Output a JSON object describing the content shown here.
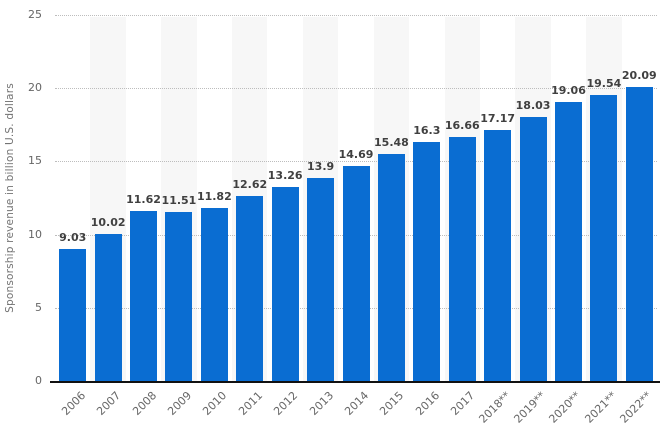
{
  "chart_data": {
    "type": "bar",
    "title": "",
    "xlabel": "",
    "ylabel": "Sponsorship revenue in billion U.S. dollars",
    "ylim": [
      0,
      25
    ],
    "yticks": [
      0,
      5,
      10,
      15,
      20,
      25
    ],
    "grid": "horizontal-dotted",
    "legend": "none",
    "background_stripes": "alternating light gray column bands",
    "categories": [
      "2006",
      "2007",
      "2008",
      "2009",
      "2010",
      "2011",
      "2012",
      "2013",
      "2014",
      "2015",
      "2016",
      "2017",
      "2018**",
      "2019**",
      "2020**",
      "2021**",
      "2022**"
    ],
    "values": [
      9.03,
      10.02,
      11.62,
      11.51,
      11.82,
      12.62,
      13.26,
      13.9,
      14.69,
      15.48,
      16.3,
      16.66,
      17.17,
      18.03,
      19.06,
      19.54,
      20.09
    ],
    "value_labels": [
      "9.03",
      "10.02",
      "11.62",
      "11.51",
      "11.82",
      "12.62",
      "13.26",
      "13.9",
      "14.69",
      "15.48",
      "16.3",
      "16.66",
      "17.17",
      "18.03",
      "19.06",
      "19.54",
      "20.09"
    ],
    "colors": {
      "bar": "#0a6dd2",
      "stripe": "#f7f7f7",
      "gridline": "#bdbdbd",
      "axis_line": "#111111",
      "tick_label": "#666666",
      "value_label": "#404040",
      "background": "#ffffff"
    }
  }
}
